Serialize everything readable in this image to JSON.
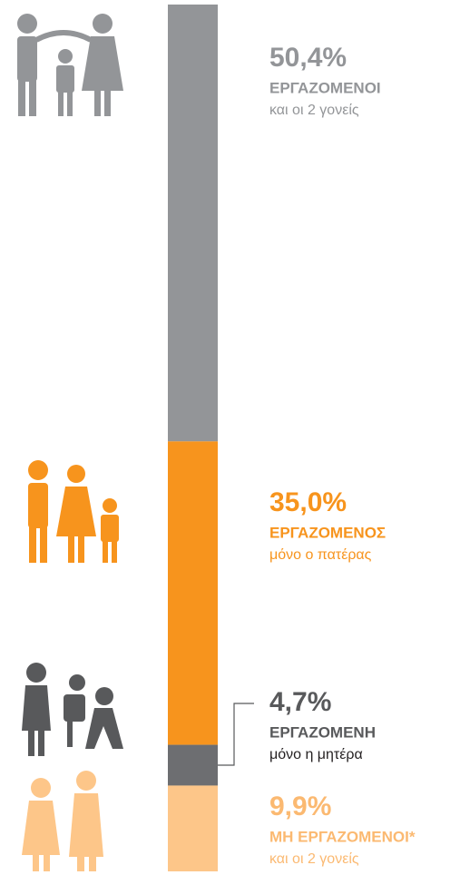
{
  "chart_data": {
    "type": "stacked_bar",
    "ylim": [
      0,
      100
    ],
    "series": [
      {
        "name": "ΕΡΓΑΖΟΜΕΝΟΙ",
        "subtitle": "και οι 2 γονείς",
        "color": "#939598",
        "values": [
          50.4
        ],
        "value_labels": [
          "50,4%"
        ]
      },
      {
        "name": "ΕΡΓΑΖΟΜΕΝΟΣ",
        "subtitle": "μόνο ο πατέρας",
        "color": "#f7941d",
        "values": [
          35.0
        ],
        "value_labels": [
          "35,0%"
        ]
      },
      {
        "name": "ΕΡΓΑΖΟΜΕΝΗ",
        "subtitle": "μόνο η μητέρα",
        "color": "#6d6e71",
        "values": [
          4.7
        ],
        "value_labels": [
          "4,7%"
        ]
      },
      {
        "name": "ΜΗ ΕΡΓΑΖΟΜΕΝΟΙ*",
        "subtitle": "και οι 2 γονείς",
        "color": "#fdc689",
        "values": [
          9.9
        ],
        "value_labels": [
          "9,9%"
        ]
      }
    ]
  }
}
